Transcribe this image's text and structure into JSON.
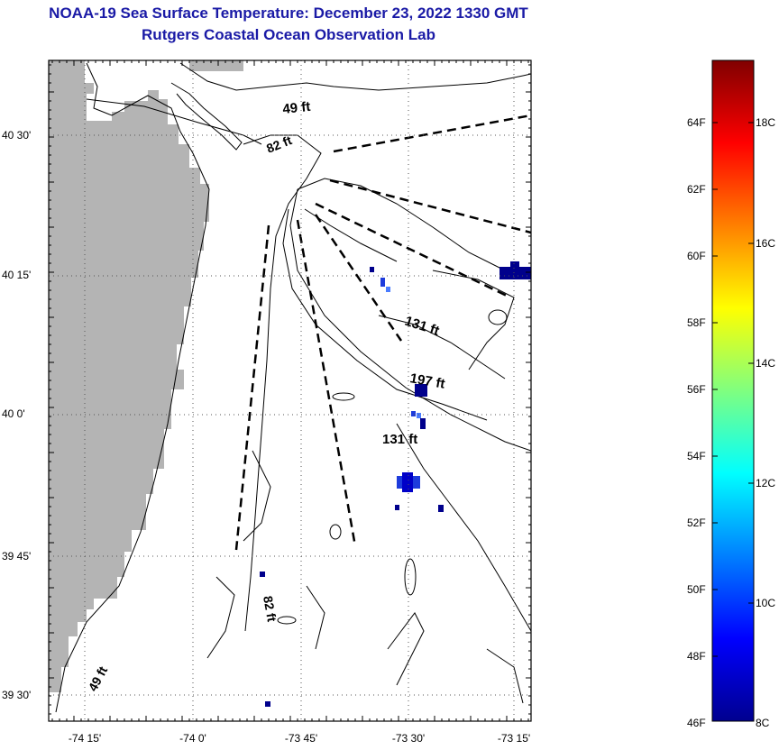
{
  "title_line1": "NOAA-19 Sea Surface Temperature:  December 23, 2022 1330 GMT",
  "title_line2": "Rutgers Coastal Ocean Observation Lab",
  "lat_labels": [
    "40 30'",
    "40 15'",
    "40 0'",
    "39 45'",
    "39 30'"
  ],
  "lon_labels": [
    "-74 15'",
    "-74 0'",
    "-73 45'",
    "-73 30'",
    "-73 15'"
  ],
  "depth_labels": [
    "49 ft",
    "82 ft",
    "131 ft",
    "197 ft",
    "131 ft",
    "82 ft",
    "49 ft"
  ],
  "colorbar": {
    "fahrenheit_labels": [
      "64F",
      "62F",
      "60F",
      "58F",
      "56F",
      "54F",
      "52F",
      "50F",
      "48F",
      "46F"
    ],
    "celsius_labels": [
      "18C",
      "16C",
      "14C",
      "12C",
      "10C",
      "8C"
    ]
  },
  "colors": {
    "title": "#1a1aa6",
    "land": "#b4b4b4",
    "pixel_dark_blue": "#00008c",
    "pixel_blue": "#1e3cdc"
  }
}
